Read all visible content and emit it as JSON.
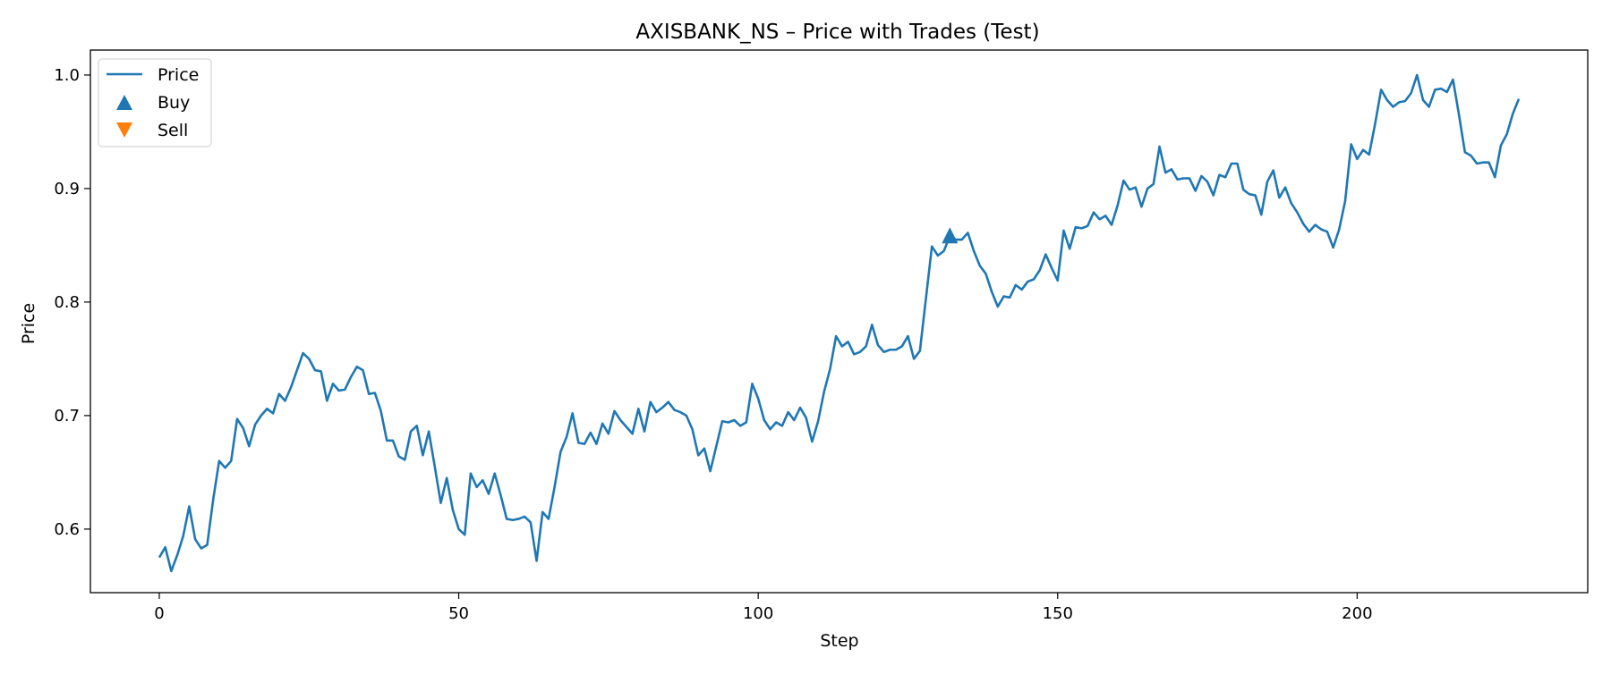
{
  "chart_data": {
    "type": "line",
    "title": "AXISBANK_NS – Price with Trades (Test)",
    "xlabel": "Step",
    "ylabel": "Price",
    "xlim": [
      -11.5,
      238.5
    ],
    "ylim": [
      0.544,
      1.022
    ],
    "xticks": [
      0,
      50,
      100,
      150,
      200
    ],
    "yticks": [
      0.6,
      0.7,
      0.8,
      0.9,
      1.0
    ],
    "xtick_labels": [
      "0",
      "50",
      "100",
      "150",
      "200"
    ],
    "ytick_labels": [
      "0.6",
      "0.7",
      "0.8",
      "0.9",
      "1.0"
    ],
    "grid": false,
    "legend_position": "top-left",
    "legend": [
      {
        "label": "Price",
        "marker": "line",
        "color": "#1f77b4"
      },
      {
        "label": "Buy",
        "marker": "triangle-up",
        "color": "#1f77b4"
      },
      {
        "label": "Sell",
        "marker": "triangle-down",
        "color": "#ff7f0e"
      }
    ],
    "series": [
      {
        "name": "Price",
        "color": "#1f77b4",
        "values": [
          0.575,
          0.584,
          0.563,
          0.577,
          0.594,
          0.62,
          0.591,
          0.583,
          0.586,
          0.626,
          0.66,
          0.654,
          0.66,
          0.697,
          0.689,
          0.673,
          0.692,
          0.7,
          0.706,
          0.702,
          0.719,
          0.713,
          0.725,
          0.74,
          0.755,
          0.75,
          0.74,
          0.739,
          0.713,
          0.728,
          0.722,
          0.723,
          0.734,
          0.743,
          0.74,
          0.719,
          0.72,
          0.704,
          0.678,
          0.678,
          0.664,
          0.661,
          0.686,
          0.691,
          0.665,
          0.686,
          0.655,
          0.623,
          0.645,
          0.617,
          0.6,
          0.595,
          0.649,
          0.637,
          0.643,
          0.631,
          0.649,
          0.63,
          0.609,
          0.608,
          0.609,
          0.611,
          0.606,
          0.572,
          0.615,
          0.609,
          0.637,
          0.668,
          0.681,
          0.702,
          0.676,
          0.675,
          0.685,
          0.675,
          0.693,
          0.684,
          0.704,
          0.696,
          0.69,
          0.684,
          0.706,
          0.686,
          0.712,
          0.703,
          0.707,
          0.712,
          0.705,
          0.703,
          0.7,
          0.688,
          0.665,
          0.671,
          0.651,
          0.673,
          0.695,
          0.694,
          0.696,
          0.691,
          0.694,
          0.728,
          0.715,
          0.696,
          0.688,
          0.694,
          0.691,
          0.703,
          0.696,
          0.707,
          0.698,
          0.677,
          0.695,
          0.721,
          0.741,
          0.77,
          0.761,
          0.765,
          0.754,
          0.756,
          0.761,
          0.78,
          0.762,
          0.756,
          0.758,
          0.758,
          0.761,
          0.77,
          0.75,
          0.757,
          0.803,
          0.849,
          0.841,
          0.845,
          0.858,
          0.855,
          0.855,
          0.861,
          0.845,
          0.832,
          0.825,
          0.809,
          0.796,
          0.805,
          0.804,
          0.815,
          0.811,
          0.818,
          0.82,
          0.828,
          0.842,
          0.83,
          0.819,
          0.863,
          0.847,
          0.866,
          0.865,
          0.867,
          0.879,
          0.873,
          0.876,
          0.868,
          0.885,
          0.907,
          0.899,
          0.901,
          0.884,
          0.9,
          0.904,
          0.937,
          0.914,
          0.917,
          0.908,
          0.909,
          0.909,
          0.898,
          0.911,
          0.906,
          0.894,
          0.912,
          0.91,
          0.922,
          0.922,
          0.899,
          0.895,
          0.894,
          0.877,
          0.906,
          0.916,
          0.892,
          0.901,
          0.887,
          0.879,
          0.869,
          0.862,
          0.868,
          0.864,
          0.862,
          0.848,
          0.864,
          0.889,
          0.939,
          0.926,
          0.934,
          0.93,
          0.957,
          0.987,
          0.978,
          0.972,
          0.976,
          0.977,
          0.984,
          1.0,
          0.978,
          0.972,
          0.987,
          0.988,
          0.985,
          0.996,
          0.965,
          0.932,
          0.929,
          0.922,
          0.923,
          0.923,
          0.91,
          0.938,
          0.948,
          0.966,
          0.979
        ]
      },
      {
        "name": "Buy",
        "color": "#1f77b4",
        "points": [
          {
            "x": 132,
            "y": 0.858
          }
        ]
      },
      {
        "name": "Sell",
        "color": "#ff7f0e",
        "points": []
      }
    ]
  }
}
